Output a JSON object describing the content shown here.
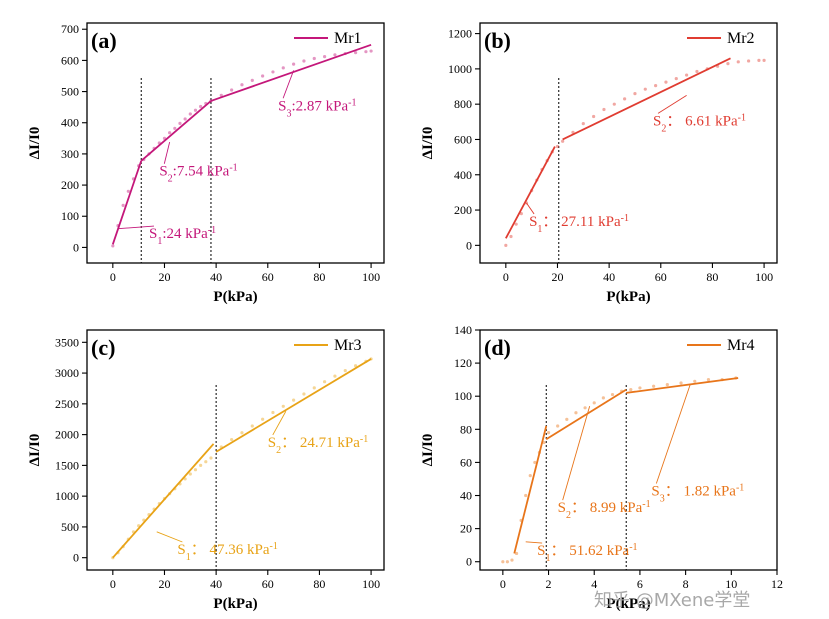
{
  "watermark": "知乎 @MXene学堂",
  "chart_data": [
    {
      "type": "line",
      "panel_label": "(a)",
      "color": "#c4177a",
      "xlabel": "P(kPa)",
      "ylabel": "ΔI/I0",
      "xlim": [
        -10,
        105
      ],
      "ylim": [
        -50,
        720
      ],
      "xticks": [
        0,
        20,
        40,
        60,
        80,
        100
      ],
      "yticks": [
        0,
        100,
        200,
        300,
        400,
        500,
        600,
        700
      ],
      "legend": "Mr1",
      "legend_placement": "top-right",
      "vlines": [
        11,
        38
      ],
      "fits": [
        {
          "x": [
            0,
            11
          ],
          "y": [
            10,
            278
          ]
        },
        {
          "x": [
            11,
            38
          ],
          "y": [
            278,
            470
          ]
        },
        {
          "x": [
            38,
            100
          ],
          "y": [
            470,
            650
          ]
        }
      ],
      "points": {
        "x": [
          0,
          2,
          4,
          6,
          8,
          10,
          12,
          14,
          16,
          18,
          20,
          22,
          24,
          26,
          28,
          30,
          32,
          34,
          36,
          38,
          42,
          46,
          50,
          54,
          58,
          62,
          66,
          70,
          74,
          78,
          82,
          86,
          90,
          94,
          98,
          100
        ],
        "y": [
          5,
          70,
          135,
          180,
          220,
          262,
          282,
          300,
          318,
          335,
          350,
          368,
          382,
          398,
          412,
          428,
          440,
          452,
          462,
          470,
          488,
          505,
          522,
          536,
          550,
          563,
          576,
          588,
          598,
          606,
          612,
          618,
          622,
          625,
          628,
          630
        ]
      },
      "annotations": [
        {
          "base": "S",
          "sub": "1",
          "text": ":24 kPa",
          "sup": "-1",
          "ax": 2,
          "ay": 60,
          "tx": 14,
          "ty": 30,
          "anchor": "start"
        },
        {
          "base": "S",
          "sub": "2",
          "text": ":7.54 kPa",
          "sup": "-1",
          "ax": 22,
          "ay": 338,
          "tx": 18,
          "ty": 230,
          "anchor": "start"
        },
        {
          "base": "S",
          "sub": "3",
          "text": ":2.87 kPa",
          "sup": "-1",
          "ax": 70,
          "ay": 568,
          "tx": 64,
          "ty": 440,
          "anchor": "start"
        }
      ]
    },
    {
      "type": "line",
      "panel_label": "(b)",
      "color": "#e03c31",
      "xlabel": "P(kPa)",
      "ylabel": "ΔI/I0",
      "xlim": [
        -10,
        105
      ],
      "ylim": [
        -100,
        1260
      ],
      "xticks": [
        0,
        20,
        40,
        60,
        80,
        100
      ],
      "yticks": [
        0,
        200,
        400,
        600,
        800,
        1000,
        1200
      ],
      "legend": "Mr2",
      "legend_placement": "top-right",
      "vlines": [
        20.5
      ],
      "fits": [
        {
          "x": [
            0,
            19
          ],
          "y": [
            40,
            560
          ]
        },
        {
          "x": [
            22,
            87
          ],
          "y": [
            600,
            1060
          ]
        }
      ],
      "points": {
        "x": [
          0,
          2,
          4,
          6,
          8,
          10,
          12,
          14,
          16,
          18,
          20,
          22,
          26,
          30,
          34,
          38,
          42,
          46,
          50,
          54,
          58,
          62,
          66,
          70,
          74,
          78,
          82,
          86,
          90,
          94,
          98,
          100
        ],
        "y": [
          0,
          50,
          120,
          180,
          240,
          310,
          370,
          430,
          480,
          530,
          560,
          590,
          640,
          690,
          730,
          770,
          800,
          830,
          860,
          885,
          905,
          925,
          945,
          965,
          985,
          1000,
          1015,
          1030,
          1040,
          1045,
          1048,
          1048
        ]
      },
      "annotations": [
        {
          "base": "S",
          "sub": "1",
          "text": "： 27.11 kPa",
          "sup": "-1",
          "ax": 8,
          "ay": 240,
          "tx": 9,
          "ty": 110,
          "anchor": "start"
        },
        {
          "base": "S",
          "sub": "2",
          "text": "： 6.61 kPa",
          "sup": "-1",
          "ax": 70,
          "ay": 850,
          "tx": 57,
          "ty": 680,
          "anchor": "start"
        }
      ]
    },
    {
      "type": "line",
      "panel_label": "(c)",
      "color": "#e8a317",
      "xlabel": "P(kPa)",
      "ylabel": "ΔI/I0",
      "xlim": [
        -10,
        105
      ],
      "ylim": [
        -200,
        3700
      ],
      "xticks": [
        0,
        20,
        40,
        60,
        80,
        100
      ],
      "yticks": [
        0,
        500,
        1000,
        1500,
        2000,
        2500,
        3000,
        3500
      ],
      "legend": "Mr3",
      "legend_placement": "top-right",
      "vlines": [
        40
      ],
      "fits": [
        {
          "x": [
            0,
            39
          ],
          "y": [
            0,
            1850
          ]
        },
        {
          "x": [
            40,
            100
          ],
          "y": [
            1720,
            3230
          ]
        }
      ],
      "points": {
        "x": [
          0,
          2,
          4,
          6,
          8,
          10,
          12,
          14,
          16,
          18,
          20,
          22,
          24,
          26,
          28,
          30,
          32,
          34,
          36,
          38,
          42,
          46,
          50,
          54,
          58,
          62,
          66,
          70,
          74,
          78,
          82,
          86,
          90,
          94,
          98,
          100
        ],
        "y": [
          0,
          80,
          180,
          300,
          420,
          520,
          610,
          700,
          790,
          880,
          960,
          1040,
          1120,
          1200,
          1280,
          1360,
          1430,
          1500,
          1560,
          1620,
          1800,
          1920,
          2030,
          2140,
          2250,
          2360,
          2460,
          2560,
          2660,
          2760,
          2860,
          2950,
          3040,
          3120,
          3190,
          3230
        ]
      },
      "annotations": [
        {
          "base": "S",
          "sub": "1",
          "text": "： 47.36 kPa",
          "sup": "-1",
          "ax": 17,
          "ay": 420,
          "tx": 25,
          "ty": 60,
          "anchor": "start"
        },
        {
          "base": "S",
          "sub": "2",
          "text": "： 24.71 kPa",
          "sup": "-1",
          "ax": 67,
          "ay": 2380,
          "tx": 60,
          "ty": 1800,
          "anchor": "start"
        }
      ]
    },
    {
      "type": "line",
      "panel_label": "(d)",
      "color": "#e8751a",
      "xlabel": "P(kPa)",
      "ylabel": "ΔI/I0",
      "xlim": [
        -1,
        12
      ],
      "ylim": [
        -5,
        140
      ],
      "xticks": [
        0,
        2,
        4,
        6,
        8,
        10,
        12
      ],
      "yticks": [
        0,
        20,
        40,
        60,
        80,
        100,
        120,
        140
      ],
      "legend": "Mr4",
      "legend_placement": "top-right",
      "vlines": [
        1.9,
        5.4
      ],
      "fits": [
        {
          "x": [
            0.5,
            1.9
          ],
          "y": [
            5,
            82
          ]
        },
        {
          "x": [
            1.9,
            5.4
          ],
          "y": [
            74,
            104
          ]
        },
        {
          "x": [
            5.4,
            10.3
          ],
          "y": [
            102,
            111
          ]
        }
      ],
      "points": {
        "x": [
          0,
          0.2,
          0.4,
          0.6,
          0.8,
          1.0,
          1.2,
          1.4,
          1.6,
          1.8,
          2.0,
          2.4,
          2.8,
          3.2,
          3.6,
          4.0,
          4.4,
          4.8,
          5.2,
          5.6,
          6.0,
          6.6,
          7.2,
          7.8,
          8.4,
          9.0,
          9.6,
          10.2
        ],
        "y": [
          0,
          0,
          1,
          5,
          25,
          40,
          52,
          60,
          66,
          72,
          78,
          82,
          86,
          90,
          93,
          96,
          99,
          101,
          103,
          104,
          105,
          106,
          107,
          108,
          109,
          110,
          110,
          111
        ]
      },
      "annotations": [
        {
          "base": "S",
          "sub": "1",
          "text": "： 51.62 kPa",
          "sup": "-1",
          "ax": 1.0,
          "ay": 12,
          "tx": 1.5,
          "ty": 4,
          "anchor": "start"
        },
        {
          "base": "S",
          "sub": "2",
          "text": "： 8.99 kPa",
          "sup": "-1",
          "ax": 3.8,
          "ay": 94,
          "tx": 2.4,
          "ty": 30,
          "anchor": "start"
        },
        {
          "base": "S",
          "sub": "3",
          "text": "： 1.82 kPa",
          "sup": "-1",
          "ax": 8.2,
          "ay": 107,
          "tx": 6.5,
          "ty": 40,
          "anchor": "start"
        }
      ]
    }
  ]
}
